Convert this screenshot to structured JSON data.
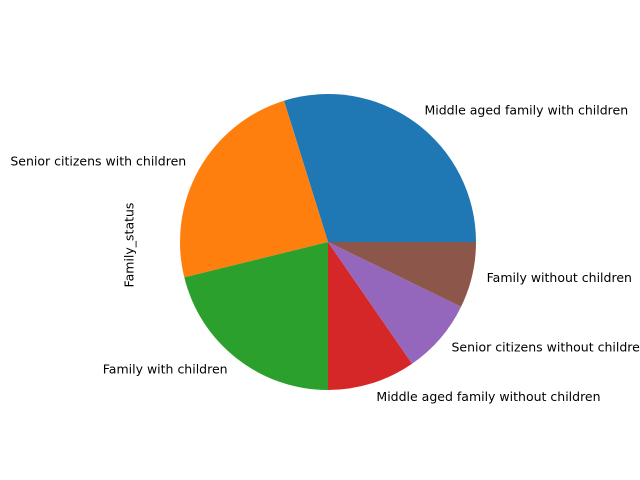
{
  "chart_data": {
    "type": "pie",
    "ylabel": "Family_status",
    "start_angle_deg": 0,
    "direction": "counterclockwise",
    "slices": [
      {
        "label": "Middle aged family with children",
        "value": 31.0,
        "color": "#1f77b4"
      },
      {
        "label": "Senior citizens with children",
        "value": 25.0,
        "color": "#ff7f0e"
      },
      {
        "label": "Family with children",
        "value": 22.0,
        "color": "#2ca02c"
      },
      {
        "label": "Middle aged family without children",
        "value": 10.0,
        "color": "#d62728"
      },
      {
        "label": "Senior citizens without children",
        "value": 8.5,
        "color": "#9467bd"
      },
      {
        "label": "Family without children",
        "value": 7.5,
        "color": "#8c564b"
      }
    ]
  }
}
